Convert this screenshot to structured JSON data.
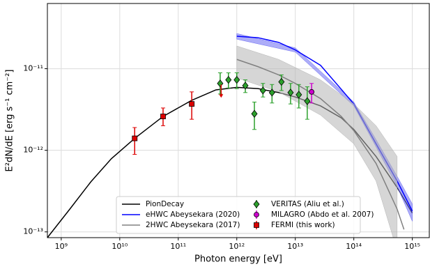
{
  "chart_data": {
    "type": "line",
    "xlabel": "Photon energy [eV]",
    "ylabel": "E²dN/dE [erg s⁻¹ cm⁻²]",
    "xscale": "log",
    "yscale": "log",
    "grid": true,
    "legend": "lower center",
    "xlim": [
      580000000.0,
      1950000000000000.0
    ],
    "ylim": [
      8.5e-14,
      6.3e-11
    ],
    "xticks": [
      {
        "value": 1000000000.0,
        "label": "10⁹"
      },
      {
        "value": 10000000000.0,
        "label": "10¹⁰"
      },
      {
        "value": 100000000000.0,
        "label": "10¹¹"
      },
      {
        "value": 1000000000000.0,
        "label": "10¹²"
      },
      {
        "value": 10000000000000.0,
        "label": "10¹³"
      },
      {
        "value": 100000000000000.0,
        "label": "10¹⁴"
      },
      {
        "value": 1000000000000000.0,
        "label": "10¹⁵"
      }
    ],
    "yticks": [
      {
        "value": 1e-13,
        "label": "10⁻¹³"
      },
      {
        "value": 1e-12,
        "label": "10⁻¹²"
      },
      {
        "value": 1e-11,
        "label": "10⁻¹¹"
      }
    ],
    "series": [
      {
        "name": "PionDecay",
        "type": "line",
        "color": "#000000",
        "x": [
          580000000.0,
          1400000000.0,
          3200000000.0,
          7200000000.0,
          18000000000.0,
          55000000000.0,
          170000000000.0,
          440000000000.0,
          1000000000000.0,
          2300000000000.0,
          5200000000000.0,
          10000000000000.0,
          27000000000000.0,
          61000000000000.0,
          100000000000000.0,
          240000000000000.0,
          550000000000000.0,
          1000000000000000.0
        ],
        "values": [
          8.5e-14,
          1.9e-13,
          4.1e-13,
          7.9e-13,
          1.4e-12,
          2.6e-12,
          4.1e-12,
          5.5e-12,
          5.9e-12,
          5.7e-12,
          5.1e-12,
          4.5e-12,
          3.5e-12,
          2.5e-12,
          1.8e-12,
          8.4e-13,
          3.5e-13,
          1.7e-13
        ]
      },
      {
        "name": "eHWC Abeysekara (2020)",
        "type": "line",
        "color": "#0000ff",
        "band_color": "#6a6af2",
        "x": [
          1000000000000.0,
          2300000000000.0,
          5200000000000.0,
          10000000000000.0,
          27000000000000.0,
          61000000000000.0,
          100000000000000.0,
          240000000000000.0,
          550000000000000.0,
          1000000000000000.0
        ],
        "values": [
          2.5e-11,
          2.4e-11,
          2.1e-11,
          1.7e-11,
          1.1e-11,
          5.6e-12,
          3.7e-12,
          1.2e-12,
          4.2e-13,
          1.8e-13
        ],
        "band": {
          "x": [
            1000000000000.0,
            10000000000000.0,
            100000000000000.0,
            240000000000000.0,
            550000000000000.0,
            1000000000000000.0
          ],
          "lower": [
            2.3e-11,
            1.6e-11,
            3.5e-12,
            1.1e-12,
            3.6e-13,
            1.35e-13
          ],
          "upper": [
            2.7e-11,
            1.8e-11,
            3.9e-12,
            1.35e-12,
            4.8e-13,
            2.2e-13
          ]
        }
      },
      {
        "name": "2HWC Abeysekara (2017)",
        "type": "line",
        "color": "#808080",
        "band_color": "#b4b4b4",
        "x": [
          1000000000000.0,
          2300000000000.0,
          5200000000000.0,
          10000000000000.0,
          27000000000000.0,
          61000000000000.0,
          100000000000000.0,
          240000000000000.0,
          550000000000000.0,
          720000000000000.0
        ],
        "values": [
          1.3e-11,
          1.06e-11,
          8.4e-12,
          6.6e-12,
          4.3e-12,
          2.6e-12,
          1.74e-12,
          6.9e-13,
          1.9e-13,
          1.07e-13
        ],
        "band": {
          "x": [
            1000000000000.0,
            5200000000000.0,
            27000000000000.0,
            100000000000000.0,
            240000000000000.0,
            550000000000000.0
          ],
          "lower": [
            7.7e-12,
            5.2e-12,
            2.7e-12,
            1.2e-12,
            4.2e-13,
            5.9e-14
          ],
          "upper": [
            1.9e-11,
            1.3e-11,
            7.3e-12,
            3.7e-12,
            2e-12,
            8.4e-13
          ]
        }
      },
      {
        "name": "VERITAS (Aliu et al.)",
        "type": "scatter",
        "marker": "diamond",
        "color": "#2ca02c",
        "x": [
          520000000000.0,
          720000000000.0,
          1000000000000.0,
          1400000000000.0,
          2000000000000.0,
          2800000000000.0,
          4000000000000.0,
          5800000000000.0,
          8300000000000.0,
          11500000000000.0,
          16000000000000.0
        ],
        "values": [
          6.6e-12,
          7.3e-12,
          7.3e-12,
          6.2e-12,
          2.8e-12,
          5.4e-12,
          5.1e-12,
          6.9e-12,
          5.1e-12,
          4.8e-12,
          4e-12
        ],
        "y_low": [
          4.9e-12,
          5.8e-12,
          5.7e-12,
          5.1e-12,
          1.8e-12,
          4.5e-12,
          3.8e-12,
          5.4e-12,
          3.7e-12,
          3.3e-12,
          2.4e-12
        ],
        "y_high": [
          8.9e-12,
          8.9e-12,
          8.9e-12,
          7.3e-12,
          3.9e-12,
          6.6e-12,
          6.4e-12,
          8.4e-12,
          6.6e-12,
          6.4e-12,
          6e-12
        ]
      },
      {
        "name": "MILAGRO (Abdo et al. 2007)",
        "type": "scatter",
        "marker": "circle",
        "color": "#cc00cc",
        "x": [
          19000000000000.0
        ],
        "values": [
          5.2e-12
        ],
        "y_low": [
          3.8e-12
        ],
        "y_high": [
          6.6e-12
        ]
      },
      {
        "name": "FERMI (this work)",
        "type": "scatter",
        "marker": "square",
        "color": "#dd0000",
        "x": [
          18000000000.0,
          55000000000.0,
          170000000000.0
        ],
        "values": [
          1.4e-12,
          2.6e-12,
          3.7e-12
        ],
        "y_low": [
          8.9e-13,
          2e-12,
          2.4e-12
        ],
        "y_high": [
          1.9e-12,
          3.3e-12,
          5.2e-12
        ],
        "upper_limits": {
          "x": [
            540000000000.0
          ],
          "values": [
            6.4e-12
          ]
        }
      }
    ]
  }
}
